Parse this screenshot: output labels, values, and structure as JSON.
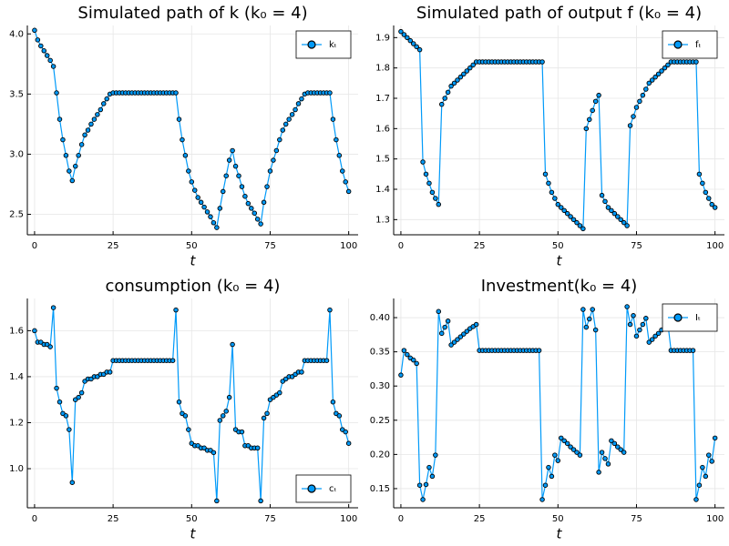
{
  "chart_data": [
    {
      "type": "line",
      "title": "Simulated path of k (k₀ = 4)",
      "x_label": "t",
      "x": [
        0,
        1,
        2,
        3,
        4,
        5,
        6,
        7,
        8,
        9,
        10,
        11,
        12,
        13,
        14,
        15,
        16,
        17,
        18,
        19,
        20,
        21,
        22,
        23,
        24,
        25,
        26,
        27,
        28,
        29,
        30,
        31,
        32,
        33,
        34,
        35,
        36,
        37,
        38,
        39,
        40,
        41,
        42,
        43,
        44,
        45,
        46,
        47,
        48,
        49,
        50,
        51,
        52,
        53,
        54,
        55,
        56,
        57,
        58,
        59,
        60,
        61,
        62,
        63,
        64,
        65,
        66,
        67,
        68,
        69,
        70,
        71,
        72,
        73,
        74,
        75,
        76,
        77,
        78,
        79,
        80,
        81,
        82,
        83,
        84,
        85,
        86,
        87,
        88,
        89,
        90,
        91,
        92,
        93,
        94,
        95,
        96,
        97,
        98,
        99,
        100
      ],
      "series": [
        {
          "name": "kₜ",
          "color": "#009af9",
          "values": [
            4.03,
            3.95,
            3.9,
            3.86,
            3.82,
            3.78,
            3.73,
            3.51,
            3.29,
            3.12,
            2.99,
            2.86,
            2.78,
            2.9,
            2.99,
            3.08,
            3.16,
            3.2,
            3.25,
            3.29,
            3.33,
            3.37,
            3.42,
            3.46,
            3.5,
            3.51,
            3.51,
            3.51,
            3.51,
            3.51,
            3.51,
            3.51,
            3.51,
            3.51,
            3.51,
            3.51,
            3.51,
            3.51,
            3.51,
            3.51,
            3.51,
            3.51,
            3.51,
            3.51,
            3.51,
            3.51,
            3.29,
            3.12,
            2.99,
            2.86,
            2.77,
            2.7,
            2.64,
            2.6,
            2.56,
            2.52,
            2.48,
            2.43,
            2.39,
            2.55,
            2.69,
            2.82,
            2.95,
            3.03,
            2.9,
            2.82,
            2.73,
            2.65,
            2.59,
            2.55,
            2.51,
            2.46,
            2.42,
            2.6,
            2.73,
            2.86,
            2.95,
            3.03,
            3.12,
            3.2,
            3.25,
            3.29,
            3.33,
            3.37,
            3.42,
            3.46,
            3.5,
            3.51,
            3.51,
            3.51,
            3.51,
            3.51,
            3.51,
            3.51,
            3.51,
            3.29,
            3.12,
            2.99,
            2.86,
            2.77,
            2.69
          ]
        }
      ],
      "xlim": [
        -2.3,
        103
      ],
      "ylim": [
        2.33,
        4.07
      ],
      "xticks": [
        0,
        25,
        50,
        75,
        100
      ],
      "yticks": [
        {
          "value": 2.5,
          "label": "2.5"
        },
        {
          "value": 3.0,
          "label": "3.0"
        },
        {
          "value": 3.5,
          "label": "3.5"
        },
        {
          "value": 4.0,
          "label": "4.0"
        }
      ],
      "grid": true,
      "legend": "top-right"
    },
    {
      "type": "line",
      "title": "Simulated path of output f (k₀ = 4)",
      "x_label": "t",
      "x": [
        0,
        1,
        2,
        3,
        4,
        5,
        6,
        7,
        8,
        9,
        10,
        11,
        12,
        13,
        14,
        15,
        16,
        17,
        18,
        19,
        20,
        21,
        22,
        23,
        24,
        25,
        26,
        27,
        28,
        29,
        30,
        31,
        32,
        33,
        34,
        35,
        36,
        37,
        38,
        39,
        40,
        41,
        42,
        43,
        44,
        45,
        46,
        47,
        48,
        49,
        50,
        51,
        52,
        53,
        54,
        55,
        56,
        57,
        58,
        59,
        60,
        61,
        62,
        63,
        64,
        65,
        66,
        67,
        68,
        69,
        70,
        71,
        72,
        73,
        74,
        75,
        76,
        77,
        78,
        79,
        80,
        81,
        82,
        83,
        84,
        85,
        86,
        87,
        88,
        89,
        90,
        91,
        92,
        93,
        94,
        95,
        96,
        97,
        98,
        99,
        100
      ],
      "series": [
        {
          "name": "fₜ",
          "color": "#009af9",
          "values": [
            1.92,
            1.91,
            1.9,
            1.89,
            1.88,
            1.87,
            1.86,
            1.49,
            1.45,
            1.42,
            1.39,
            1.37,
            1.35,
            1.68,
            1.7,
            1.72,
            1.74,
            1.75,
            1.76,
            1.77,
            1.78,
            1.79,
            1.8,
            1.81,
            1.82,
            1.82,
            1.82,
            1.82,
            1.82,
            1.82,
            1.82,
            1.82,
            1.82,
            1.82,
            1.82,
            1.82,
            1.82,
            1.82,
            1.82,
            1.82,
            1.82,
            1.82,
            1.82,
            1.82,
            1.82,
            1.82,
            1.45,
            1.42,
            1.39,
            1.37,
            1.35,
            1.34,
            1.33,
            1.32,
            1.31,
            1.3,
            1.29,
            1.28,
            1.27,
            1.6,
            1.63,
            1.66,
            1.69,
            1.71,
            1.38,
            1.36,
            1.34,
            1.33,
            1.32,
            1.31,
            1.3,
            1.29,
            1.28,
            1.61,
            1.64,
            1.67,
            1.69,
            1.71,
            1.73,
            1.75,
            1.76,
            1.77,
            1.78,
            1.79,
            1.8,
            1.81,
            1.82,
            1.82,
            1.82,
            1.82,
            1.82,
            1.82,
            1.82,
            1.82,
            1.82,
            1.45,
            1.42,
            1.39,
            1.37,
            1.35,
            1.34
          ]
        }
      ],
      "xlim": [
        -2.3,
        103
      ],
      "ylim": [
        1.25,
        1.94
      ],
      "xticks": [
        0,
        25,
        50,
        75,
        100
      ],
      "yticks": [
        {
          "value": 1.3,
          "label": "1.3"
        },
        {
          "value": 1.4,
          "label": "1.4"
        },
        {
          "value": 1.5,
          "label": "1.5"
        },
        {
          "value": 1.6,
          "label": "1.6"
        },
        {
          "value": 1.7,
          "label": "1.7"
        },
        {
          "value": 1.8,
          "label": "1.8"
        },
        {
          "value": 1.9,
          "label": "1.9"
        }
      ],
      "grid": true,
      "legend": "top-right"
    },
    {
      "type": "line",
      "title": "consumption (k₀ = 4)",
      "x_label": "t",
      "x": [
        0,
        1,
        2,
        3,
        4,
        5,
        6,
        7,
        8,
        9,
        10,
        11,
        12,
        13,
        14,
        15,
        16,
        17,
        18,
        19,
        20,
        21,
        22,
        23,
        24,
        25,
        26,
        27,
        28,
        29,
        30,
        31,
        32,
        33,
        34,
        35,
        36,
        37,
        38,
        39,
        40,
        41,
        42,
        43,
        44,
        45,
        46,
        47,
        48,
        49,
        50,
        51,
        52,
        53,
        54,
        55,
        56,
        57,
        58,
        59,
        60,
        61,
        62,
        63,
        64,
        65,
        66,
        67,
        68,
        69,
        70,
        71,
        72,
        73,
        74,
        75,
        76,
        77,
        78,
        79,
        80,
        81,
        82,
        83,
        84,
        85,
        86,
        87,
        88,
        89,
        90,
        91,
        92,
        93,
        94,
        95,
        96,
        97,
        98,
        99,
        100
      ],
      "series": [
        {
          "name": "cₜ",
          "color": "#009af9",
          "values": [
            1.6,
            1.55,
            1.55,
            1.54,
            1.54,
            1.53,
            1.7,
            1.35,
            1.29,
            1.24,
            1.23,
            1.17,
            0.94,
            1.3,
            1.31,
            1.33,
            1.38,
            1.39,
            1.39,
            1.4,
            1.4,
            1.41,
            1.41,
            1.42,
            1.42,
            1.47,
            1.47,
            1.47,
            1.47,
            1.47,
            1.47,
            1.47,
            1.47,
            1.47,
            1.47,
            1.47,
            1.47,
            1.47,
            1.47,
            1.47,
            1.47,
            1.47,
            1.47,
            1.47,
            1.47,
            1.69,
            1.29,
            1.24,
            1.23,
            1.17,
            1.11,
            1.1,
            1.1,
            1.09,
            1.09,
            1.08,
            1.08,
            1.07,
            0.86,
            1.21,
            1.23,
            1.25,
            1.31,
            1.54,
            1.17,
            1.16,
            1.16,
            1.1,
            1.1,
            1.09,
            1.09,
            1.09,
            0.86,
            1.22,
            1.24,
            1.3,
            1.31,
            1.32,
            1.33,
            1.38,
            1.39,
            1.4,
            1.4,
            1.41,
            1.42,
            1.42,
            1.47,
            1.47,
            1.47,
            1.47,
            1.47,
            1.47,
            1.47,
            1.47,
            1.69,
            1.29,
            1.24,
            1.23,
            1.17,
            1.16,
            1.11
          ]
        }
      ],
      "xlim": [
        -2.3,
        103
      ],
      "ylim": [
        0.83,
        1.74
      ],
      "xticks": [
        0,
        25,
        50,
        75,
        100
      ],
      "yticks": [
        {
          "value": 1.0,
          "label": "1.0"
        },
        {
          "value": 1.2,
          "label": "1.2"
        },
        {
          "value": 1.4,
          "label": "1.4"
        },
        {
          "value": 1.6,
          "label": "1.6"
        }
      ],
      "grid": true,
      "legend": "bottom-right"
    },
    {
      "type": "line",
      "title": "Investment(k₀ = 4)",
      "x_label": "t",
      "x": [
        0,
        1,
        2,
        3,
        4,
        5,
        6,
        7,
        8,
        9,
        10,
        11,
        12,
        13,
        14,
        15,
        16,
        17,
        18,
        19,
        20,
        21,
        22,
        23,
        24,
        25,
        26,
        27,
        28,
        29,
        30,
        31,
        32,
        33,
        34,
        35,
        36,
        37,
        38,
        39,
        40,
        41,
        42,
        43,
        44,
        45,
        46,
        47,
        48,
        49,
        50,
        51,
        52,
        53,
        54,
        55,
        56,
        57,
        58,
        59,
        60,
        61,
        62,
        63,
        64,
        65,
        66,
        67,
        68,
        69,
        70,
        71,
        72,
        73,
        74,
        75,
        76,
        77,
        78,
        79,
        80,
        81,
        82,
        83,
        84,
        85,
        86,
        87,
        88,
        89,
        90,
        91,
        92,
        93,
        94,
        95,
        96,
        97,
        98,
        99,
        100
      ],
      "series": [
        {
          "name": "Iₜ",
          "color": "#009af9",
          "values": [
            0.316,
            0.352,
            0.346,
            0.341,
            0.338,
            0.333,
            0.155,
            0.134,
            0.156,
            0.181,
            0.168,
            0.199,
            0.409,
            0.377,
            0.386,
            0.395,
            0.36,
            0.364,
            0.368,
            0.372,
            0.376,
            0.38,
            0.384,
            0.387,
            0.39,
            0.352,
            0.352,
            0.352,
            0.352,
            0.352,
            0.352,
            0.352,
            0.352,
            0.352,
            0.352,
            0.352,
            0.352,
            0.352,
            0.352,
            0.352,
            0.352,
            0.352,
            0.352,
            0.352,
            0.352,
            0.134,
            0.155,
            0.181,
            0.168,
            0.199,
            0.191,
            0.224,
            0.22,
            0.216,
            0.211,
            0.207,
            0.203,
            0.199,
            0.412,
            0.386,
            0.398,
            0.412,
            0.382,
            0.174,
            0.203,
            0.194,
            0.186,
            0.22,
            0.216,
            0.211,
            0.207,
            0.203,
            0.416,
            0.39,
            0.403,
            0.373,
            0.382,
            0.39,
            0.399,
            0.364,
            0.368,
            0.373,
            0.377,
            0.382,
            0.386,
            0.391,
            0.352,
            0.352,
            0.352,
            0.352,
            0.352,
            0.352,
            0.352,
            0.352,
            0.134,
            0.155,
            0.181,
            0.168,
            0.199,
            0.19,
            0.224
          ]
        }
      ],
      "xlim": [
        -2.3,
        103
      ],
      "ylim": [
        0.122,
        0.428
      ],
      "xticks": [
        0,
        25,
        50,
        75,
        100
      ],
      "yticks": [
        0.15,
        {
          "value": 0.2,
          "label": "0.20"
        },
        0.25,
        {
          "value": 0.3,
          "label": "0.30"
        },
        0.35,
        {
          "value": 0.4,
          "label": "0.40"
        }
      ],
      "grid": true,
      "legend": "top-right"
    }
  ]
}
